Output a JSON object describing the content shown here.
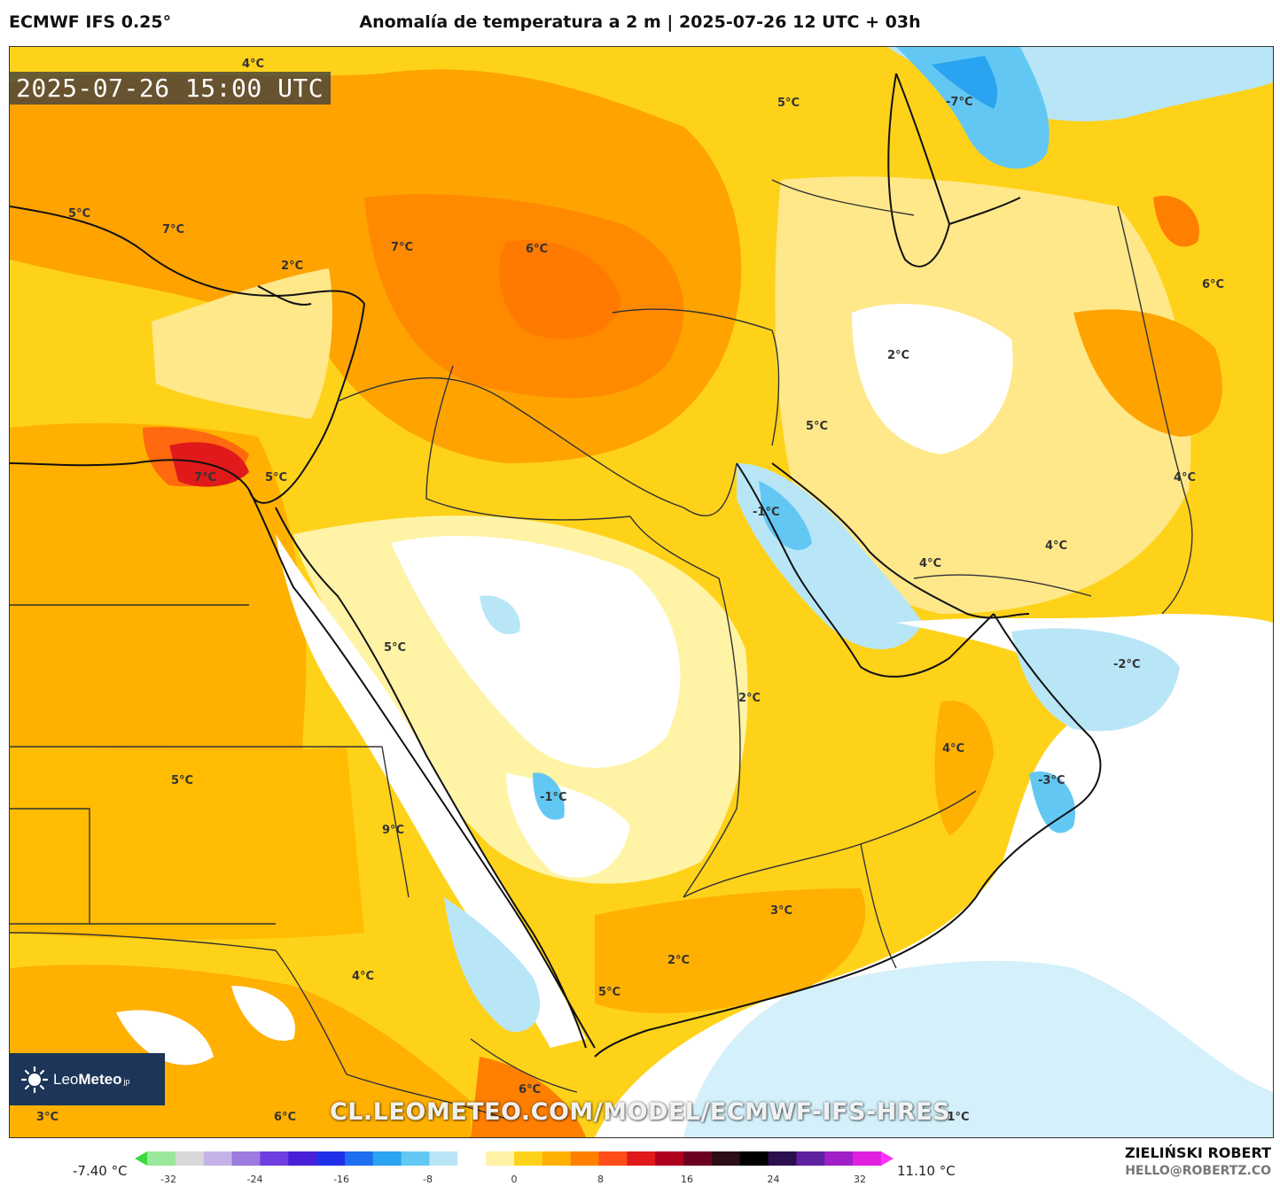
{
  "header": {
    "model": "ECMWF IFS 0.25°",
    "title": "Anomalía de temperatura a 2 m | 2025-07-26 12 UTC + 03h"
  },
  "map": {
    "timestamp": "2025-07-26 15:00 UTC",
    "watermark": "CL.LEOMETEO.COM/MODEL/ECMWF-IFS-HRES",
    "labels": [
      {
        "id": "ukraine",
        "text": "4°C"
      },
      {
        "id": "russia-s",
        "text": "5°C"
      },
      {
        "id": "kazakh",
        "text": "-7°C"
      },
      {
        "id": "aegean",
        "text": "5°C"
      },
      {
        "id": "greece",
        "text": "7°C"
      },
      {
        "id": "turkey-s",
        "text": "2°C"
      },
      {
        "id": "turkey-e",
        "text": "7°C"
      },
      {
        "id": "iraq-n",
        "text": "6°C"
      },
      {
        "id": "turkmen",
        "text": "6°C"
      },
      {
        "id": "iran-n",
        "text": "2°C"
      },
      {
        "id": "iran-w",
        "text": "5°C"
      },
      {
        "id": "afghan",
        "text": "4°C"
      },
      {
        "id": "egypt-n",
        "text": "7°C"
      },
      {
        "id": "sinai",
        "text": "5°C"
      },
      {
        "id": "gulf",
        "text": "-1°C"
      },
      {
        "id": "iran-s",
        "text": "4°C"
      },
      {
        "id": "iran-se",
        "text": "4°C"
      },
      {
        "id": "arabian-n",
        "text": "-2°C"
      },
      {
        "id": "hejaz",
        "text": "5°C"
      },
      {
        "id": "saudi-c",
        "text": "2°C"
      },
      {
        "id": "oman",
        "text": "4°C"
      },
      {
        "id": "oman-coast",
        "text": "-3°C"
      },
      {
        "id": "sudan-n",
        "text": "5°C"
      },
      {
        "id": "asir",
        "text": "-1°C"
      },
      {
        "id": "sudan-e",
        "text": "9°C"
      },
      {
        "id": "yemen-e",
        "text": "3°C"
      },
      {
        "id": "yemen",
        "text": "2°C"
      },
      {
        "id": "sudan-s",
        "text": "4°C"
      },
      {
        "id": "eritrea",
        "text": "5°C"
      },
      {
        "id": "ethiopia",
        "text": "6°C"
      },
      {
        "id": "sw-corner",
        "text": "3°C"
      },
      {
        "id": "s-sudan",
        "text": "6°C"
      },
      {
        "id": "arabian-s",
        "text": "-1°C"
      }
    ]
  },
  "logo": {
    "brand_light": "Leo",
    "brand_bold": "Meteo",
    "suffix": "jp"
  },
  "colorbar": {
    "min_label": "-7.40 °C",
    "max_label": "11.10 °C",
    "ticks": [
      "-32",
      "-24",
      "-16",
      "-8",
      "0",
      "8",
      "16",
      "24",
      "32"
    ],
    "colors": [
      "#3bd93b",
      "#9be89b",
      "#d8d8d8",
      "#c5b3e8",
      "#9b7be0",
      "#6f3ee0",
      "#4a1fd8",
      "#2030e8",
      "#1e6ef0",
      "#2aa3f0",
      "#62c8f3",
      "#b8e6f7",
      "#ffffff",
      "#fff3a6",
      "#ffd21a",
      "#ffb000",
      "#ff7f00",
      "#ff4d1a",
      "#e01a1a",
      "#b00020",
      "#6b0020",
      "#2a0d15",
      "#000000",
      "#2b1050",
      "#6020a0",
      "#a020c8",
      "#e020e0",
      "#ff30ff"
    ]
  },
  "credits": {
    "author": "ZIELIŃSKI ROBERT",
    "email": "HELLO@ROBERTZ.CO"
  }
}
